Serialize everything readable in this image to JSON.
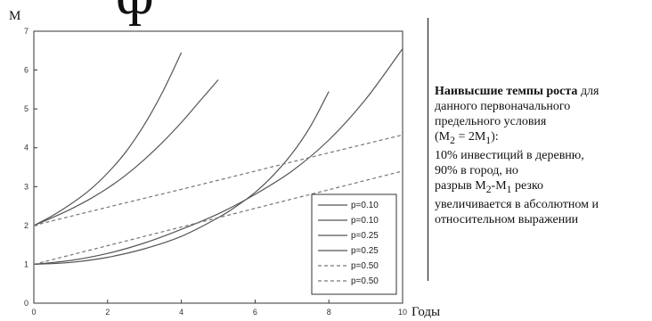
{
  "title_fragment": "ф",
  "note": {
    "bold": "Наивысшие темпы роста",
    "line1_rest": " для",
    "line2": "данного  первоначального",
    "line3": "предельного условия",
    "line4_open": "(M",
    "line4_sub1": "2",
    "line4_mid": " = 2M",
    "line4_sub2": "1",
    "line4_close": "):",
    "line5": "10% инвестиций в деревню,",
    "line6": "90% в город, но",
    "line7_pre": "разрыв M",
    "line7_sub1": "2",
    "line7_mid": "-M",
    "line7_sub2": "1",
    "line7_post": " резко",
    "line8": "увеличивается в абсолютном и",
    "line9": "относительном выражении"
  },
  "chart_data": {
    "type": "line",
    "title": "",
    "xlabel": "Годы",
    "ylabel": "M",
    "xlim": [
      0,
      10
    ],
    "ylim": [
      0,
      7
    ],
    "xticks": [
      0,
      2,
      4,
      6,
      8,
      10
    ],
    "yticks": [
      0,
      1,
      2,
      3,
      4,
      5,
      6,
      7
    ],
    "grid": false,
    "legend_position": "lower-right",
    "series": [
      {
        "name": "p=0.10",
        "style": "solid",
        "x": [
          0,
          0.5,
          1,
          1.5,
          2,
          2.5,
          3,
          3.5,
          4
        ],
        "y": [
          2.0,
          2.25,
          2.55,
          2.9,
          3.35,
          3.9,
          4.6,
          5.45,
          6.45
        ]
      },
      {
        "name": "p=0.10",
        "style": "solid",
        "x": [
          0,
          0.5,
          1,
          1.5,
          2,
          2.5,
          3,
          3.5,
          4,
          4.5,
          5
        ],
        "y": [
          2.0,
          2.2,
          2.42,
          2.67,
          2.96,
          3.3,
          3.7,
          4.15,
          4.65,
          5.2,
          5.75
        ]
      },
      {
        "name": "p=0.25",
        "style": "solid",
        "x": [
          0,
          1,
          2,
          3,
          4,
          5,
          5.5,
          6,
          6.5,
          7,
          7.5,
          8
        ],
        "y": [
          1.0,
          1.05,
          1.18,
          1.4,
          1.72,
          2.2,
          2.5,
          2.85,
          3.3,
          3.85,
          4.55,
          5.45
        ]
      },
      {
        "name": "p=0.25",
        "style": "solid",
        "x": [
          0,
          1,
          2,
          3,
          4,
          5,
          6,
          7,
          8,
          9,
          10
        ],
        "y": [
          1.0,
          1.1,
          1.28,
          1.55,
          1.9,
          2.3,
          2.8,
          3.4,
          4.2,
          5.25,
          6.55
        ]
      },
      {
        "name": "p=0.50",
        "style": "dashed",
        "x": [
          0,
          2,
          4,
          6,
          8,
          10
        ],
        "y": [
          2.0,
          2.47,
          2.93,
          3.4,
          3.87,
          4.33
        ]
      },
      {
        "name": "p=0.50",
        "style": "dashed",
        "x": [
          0,
          2,
          4,
          6,
          8,
          10
        ],
        "y": [
          1.0,
          1.48,
          1.96,
          2.44,
          2.92,
          3.4
        ]
      }
    ]
  }
}
